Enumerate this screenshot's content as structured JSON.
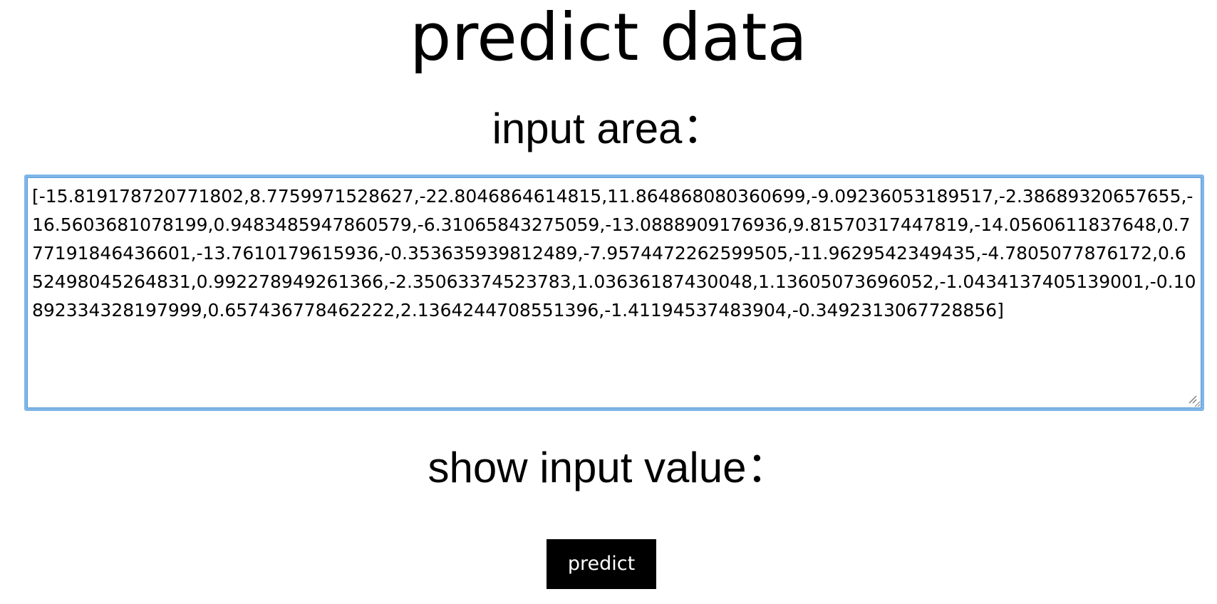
{
  "page": {
    "title": "predict data"
  },
  "input_section": {
    "heading": "input area：",
    "value": "[-15.819178720771802,8.7759971528627,-22.8046864614815,11.864868080360699,-9.09236053189517,-2.38689320657655,-16.5603681078199,0.9483485947860579,-6.31065843275059,-13.0888909176936,9.81570317447819,-14.0560611837648,0.777191846436601,-13.7610179615936,-0.353635939812489,-7.9574472262599505,-11.9629542349435,-4.7805077876172,0.652498045264831,0.992278949261366,-2.35063374523783,1.03636187430048,1.13605073696052,-1.0434137405139001,-0.10892334328197999,0.657436778462222,2.1364244708551396,-1.41194537483904,-0.3492313067728856]"
  },
  "output_section": {
    "heading": "show input value："
  },
  "actions": {
    "predict_label": "predict"
  },
  "icons": {
    "resize_handle": "resize-grip-icon"
  }
}
